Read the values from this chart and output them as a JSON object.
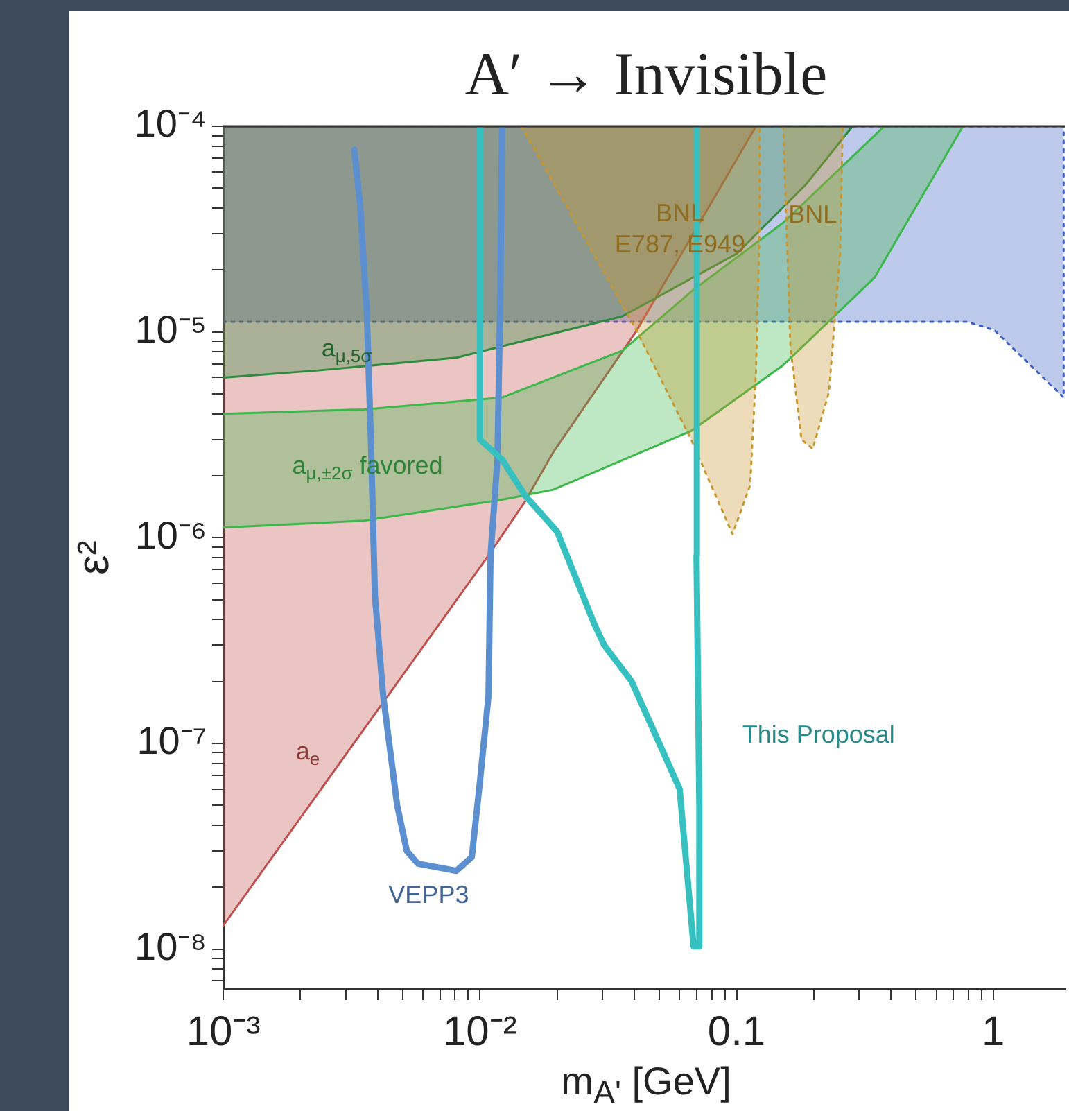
{
  "chart_data": {
    "type": "area",
    "title": "A′ → Invisible",
    "xlabel": "m$_{A'}$ [GeV]",
    "ylabel": "ε²",
    "log": "xy",
    "marker": "none",
    "xlim": [
      0.001,
      1.9
    ],
    "ylim": [
      6.4e-09,
      0.0001
    ],
    "xticks": [
      {
        "value": 0.001,
        "label": "10⁻³"
      },
      {
        "value": 0.002,
        "label": null
      },
      {
        "value": 0.003,
        "label": null
      },
      {
        "value": 0.004,
        "label": null
      },
      {
        "value": 0.005,
        "label": null
      },
      {
        "value": 0.006,
        "label": null
      },
      {
        "value": 0.007,
        "label": null
      },
      {
        "value": 0.008,
        "label": null
      },
      {
        "value": 0.009,
        "label": null
      },
      {
        "value": 0.01,
        "label": "10⁻²"
      },
      {
        "value": 0.02,
        "label": null
      },
      {
        "value": 0.03,
        "label": null
      },
      {
        "value": 0.04,
        "label": null
      },
      {
        "value": 0.05,
        "label": null
      },
      {
        "value": 0.06,
        "label": null
      },
      {
        "value": 0.07,
        "label": null
      },
      {
        "value": 0.08,
        "label": null
      },
      {
        "value": 0.09,
        "label": null
      },
      0.1,
      {
        "value": 0.2,
        "label": null
      },
      {
        "value": 0.3,
        "label": null
      },
      {
        "value": 0.4,
        "label": null
      },
      {
        "value": 0.5,
        "label": null
      },
      {
        "value": 0.6,
        "label": null
      },
      {
        "value": 0.7,
        "label": null
      },
      {
        "value": 0.8,
        "label": null
      },
      {
        "value": 0.9,
        "label": null
      },
      1
    ],
    "yticks": [
      {
        "value": 0.0001,
        "label": "10⁻⁴"
      },
      {
        "value": 9e-05,
        "label": null
      },
      {
        "value": 8e-05,
        "label": null
      },
      {
        "value": 7e-05,
        "label": null
      },
      {
        "value": 6e-05,
        "label": null
      },
      {
        "value": 5e-05,
        "label": null
      },
      {
        "value": 4e-05,
        "label": null
      },
      {
        "value": 3e-05,
        "label": null
      },
      {
        "value": 2e-05,
        "label": null
      },
      {
        "value": 1e-05,
        "label": "10⁻⁵"
      },
      {
        "value": 9e-06,
        "label": null
      },
      {
        "value": 8e-06,
        "label": null
      },
      {
        "value": 7e-06,
        "label": null
      },
      {
        "value": 6e-06,
        "label": null
      },
      {
        "value": 5e-06,
        "label": null
      },
      {
        "value": 4e-06,
        "label": null
      },
      {
        "value": 3e-06,
        "label": null
      },
      {
        "value": 2e-06,
        "label": null
      },
      {
        "value": 1e-06,
        "label": "10⁻⁶"
      },
      {
        "value": 9e-07,
        "label": null
      },
      {
        "value": 8e-07,
        "label": null
      },
      {
        "value": 7e-07,
        "label": null
      },
      {
        "value": 6e-07,
        "label": null
      },
      {
        "value": 5e-07,
        "label": null
      },
      {
        "value": 4e-07,
        "label": null
      },
      {
        "value": 3e-07,
        "label": null
      },
      {
        "value": 2e-07,
        "label": null
      },
      {
        "value": 1e-07,
        "label": "10⁻⁷"
      },
      {
        "value": 9e-08,
        "label": null
      },
      {
        "value": 8e-08,
        "label": null
      },
      {
        "value": 7e-08,
        "label": null
      },
      {
        "value": 6e-08,
        "label": null
      },
      {
        "value": 5e-08,
        "label": null
      },
      {
        "value": 4e-08,
        "label": null
      },
      {
        "value": 3e-08,
        "label": null
      },
      {
        "value": 2e-08,
        "label": null
      },
      {
        "value": 1e-08,
        "label": "10⁻⁸"
      },
      {
        "value": 9e-09,
        "label": null
      },
      {
        "value": 8e-09,
        "label": null
      },
      {
        "value": 7e-09,
        "label": null
      }
    ],
    "series": [
      {
        "color": "#3d5fc4",
        "line_style": "dotted",
        "x": [
          0.001,
          0.79,
          1.01,
          1.88,
          1.88,
          0.001
        ],
        "values": [
          1.12e-05,
          1.12e-05,
          1.02e-05,
          4.8e-06,
          0.0001,
          0.0001
        ]
      },
      {
        "name": "a$_{e}$",
        "color": "#c0504d",
        "x": [
          0.001,
          0.0108,
          0.015,
          0.0193,
          0.0405,
          0.119,
          0.001
        ],
        "values": [
          1.3e-08,
          8.2e-07,
          1.5e-06,
          2.6e-06,
          1e-05,
          0.0001,
          0.0001
        ]
      },
      {
        "name": "a$_{μ,±2σ}$ favored",
        "color": "#3cb84a",
        "x": [
          0.001,
          0.00353,
          0.0122,
          0.0193,
          0.0358,
          0.0665,
          0.152,
          0.376,
          0.762,
          0.345,
          0.152,
          0.0665,
          0.0193,
          0.0122,
          0.00353,
          0.001
        ],
        "values": [
          4e-06,
          4.2e-06,
          4.8e-06,
          6e-06,
          8.1e-06,
          1.57e-05,
          3.4e-05,
          0.0001,
          0.0001,
          1.84e-05,
          6.9e-06,
          3.3e-06,
          1.71e-06,
          1.53e-06,
          1.21e-06,
          1.12e-06
        ]
      },
      {
        "name": "a$_{μ,5σ}$",
        "color": "#2e8b3e",
        "x": [
          0.001,
          0.00235,
          0.0081,
          0.0358,
          0.1,
          0.186,
          0.283,
          0.001
        ],
        "values": [
          6e-06,
          6.5e-06,
          7.5e-06,
          1.19e-05,
          2.4e-05,
          5.2e-05,
          0.0001,
          0.0001
        ]
      },
      {
        "name": "BNL\nE787, E949",
        "color": "#c8962c",
        "line_style": "dotted",
        "x": [
          0.0145,
          0.0405,
          0.0665,
          0.0964,
          0.113,
          0.119,
          0.123,
          0.123
        ],
        "values": [
          0.0001,
          1.03e-05,
          3e-06,
          1.04e-06,
          1.8e-06,
          6.5e-06,
          3.4e-05,
          0.0001
        ]
      },
      {
        "name": "BNL",
        "color": "#c8962c",
        "line_style": "dotted",
        "x": [
          0.152,
          0.162,
          0.179,
          0.198,
          0.229,
          0.253,
          0.259
        ],
        "values": [
          0.0001,
          8.5e-06,
          3e-06,
          2.7e-06,
          5.1e-06,
          2.4e-05,
          0.0001
        ]
      },
      {
        "type": "line",
        "name": "VEPP3",
        "color": "#5b8fd0",
        "x": [
          0.00324,
          0.00341,
          0.00362,
          0.00376,
          0.0039,
          0.0042,
          0.00476,
          0.00519,
          0.00573,
          0.0081,
          0.0093,
          0.01,
          0.0108,
          0.011,
          0.0117,
          0.012,
          0.0122
        ],
        "values": [
          7.7e-05,
          4.2e-05,
          1.3e-05,
          3e-06,
          5.2e-07,
          1.7e-07,
          5e-08,
          3e-08,
          2.6e-08,
          2.4e-08,
          2.8e-08,
          6.5e-08,
          1.7e-07,
          8.2e-07,
          2.4e-06,
          1.4e-05,
          9.7e-05
        ]
      },
      {
        "type": "line",
        "name": "This Proposal",
        "color": "#36c0c0",
        "x": [
          0.01,
          0.01,
          0.0122,
          0.015,
          0.02,
          0.0279,
          0.0305,
          0.039,
          0.06,
          0.068,
          0.0716,
          0.0716,
          0.0698,
          0.07
        ],
        "values": [
          0.0001,
          3e-06,
          2.4e-06,
          1.6e-06,
          1.07e-06,
          3.8e-07,
          3e-07,
          2e-07,
          6e-08,
          1.03e-08,
          1.03e-08,
          5e-08,
          8.2e-07,
          0.0001
        ]
      }
    ]
  }
}
